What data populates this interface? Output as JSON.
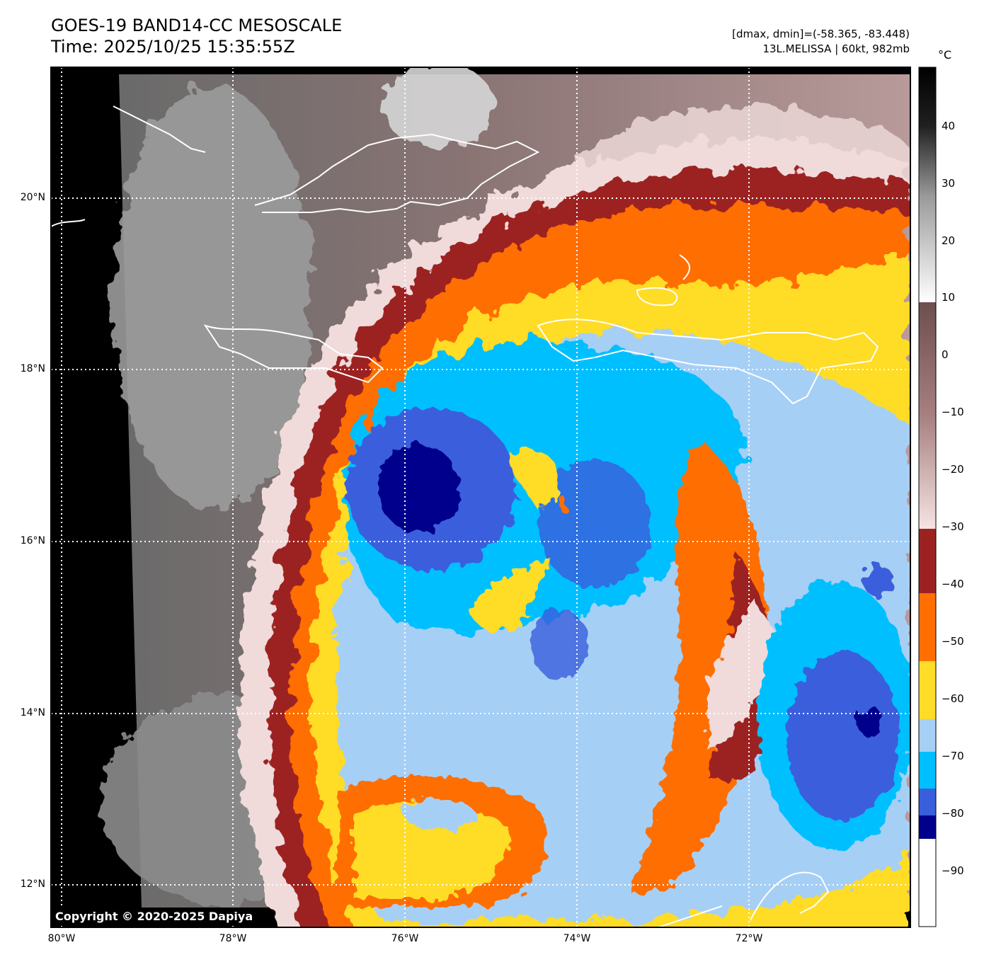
{
  "title": {
    "line1": "GOES-19 BAND14-CC MESOSCALE",
    "line2": "Time: 2025/10/25 15:35:55Z"
  },
  "info": {
    "range": "[dmax, dmin]=(-58.365, -83.448)",
    "storm": "13L.MELISSA | 60kt, 982mb"
  },
  "lat_labels": [
    "20°N",
    "18°N",
    "16°N",
    "14°N",
    "12°N"
  ],
  "lon_labels": [
    "80°W",
    "78°W",
    "76°W",
    "74°W",
    "72°W"
  ],
  "colorbar": {
    "unit": "°C",
    "ticks": [
      "40",
      "30",
      "20",
      "10",
      "0",
      "−10",
      "−20",
      "−30",
      "−40",
      "−50",
      "−60",
      "−70",
      "−80",
      "−90"
    ],
    "colors": {
      "above_-30": "#f5e0e0",
      "-40_-30": "#9c2222",
      "-50_-40": "#ff6e00",
      "-60_-50": "#ffdc28",
      "-70_-60": "#a6cff5",
      "-80_-70": "#00bfff",
      "-85_-80": "#3a5fdc",
      "-90_-85": "#00008c",
      "below_-90": "#ffffff"
    }
  },
  "copyright": "Copyright © 2020-2025 Dapiya"
}
